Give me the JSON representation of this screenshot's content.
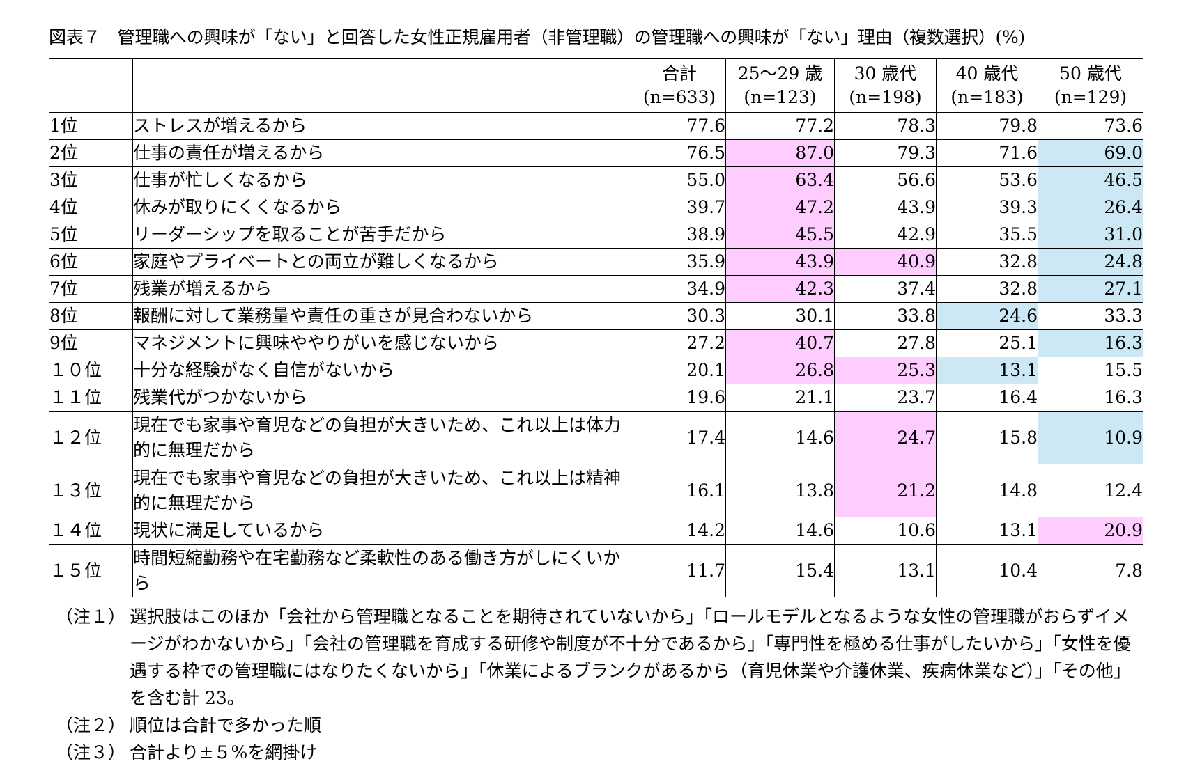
{
  "title": "図表７　管理職への興味が「ない」と回答した女性正規雇用者（非管理職）の管理職への興味が「ない」理由（複数選択）(%)",
  "chart_data": {
    "type": "table",
    "columns": [
      {
        "name": "合計",
        "n": "(n=633)"
      },
      {
        "name": "25～29 歳",
        "n": "(n=123)"
      },
      {
        "name": "30 歳代",
        "n": "(n=198)"
      },
      {
        "name": "40 歳代",
        "n": "(n=183)"
      },
      {
        "name": "50 歳代",
        "n": "(n=129)"
      }
    ],
    "rows": [
      {
        "rank": "1位",
        "reason": "ストレスが増えるから",
        "values": [
          "77.6",
          "77.2",
          "78.3",
          "79.8",
          "73.6"
        ],
        "highlight": [
          "",
          "",
          "",
          "",
          ""
        ]
      },
      {
        "rank": "2位",
        "reason": "仕事の責任が増えるから",
        "values": [
          "76.5",
          "87.0",
          "79.3",
          "71.6",
          "69.0"
        ],
        "highlight": [
          "",
          "hi",
          "",
          "",
          "lo"
        ]
      },
      {
        "rank": "3位",
        "reason": "仕事が忙しくなるから",
        "values": [
          "55.0",
          "63.4",
          "56.6",
          "53.6",
          "46.5"
        ],
        "highlight": [
          "",
          "hi",
          "",
          "",
          "lo"
        ]
      },
      {
        "rank": "4位",
        "reason": "休みが取りにくくなるから",
        "values": [
          "39.7",
          "47.2",
          "43.9",
          "39.3",
          "26.4"
        ],
        "highlight": [
          "",
          "hi",
          "",
          "",
          "lo"
        ]
      },
      {
        "rank": "5位",
        "reason": "リーダーシップを取ることが苦手だから",
        "values": [
          "38.9",
          "45.5",
          "42.9",
          "35.5",
          "31.0"
        ],
        "highlight": [
          "",
          "hi",
          "",
          "",
          "lo"
        ]
      },
      {
        "rank": "6位",
        "reason": "家庭やプライベートとの両立が難しくなるから",
        "values": [
          "35.9",
          "43.9",
          "40.9",
          "32.8",
          "24.8"
        ],
        "highlight": [
          "",
          "hi",
          "hi",
          "",
          "lo"
        ]
      },
      {
        "rank": "7位",
        "reason": "残業が増えるから",
        "values": [
          "34.9",
          "42.3",
          "37.4",
          "32.8",
          "27.1"
        ],
        "highlight": [
          "",
          "hi",
          "",
          "",
          "lo"
        ]
      },
      {
        "rank": "8位",
        "reason": "報酬に対して業務量や責任の重さが見合わないから",
        "values": [
          "30.3",
          "30.1",
          "33.8",
          "24.6",
          "33.3"
        ],
        "highlight": [
          "",
          "",
          "",
          "lo",
          ""
        ]
      },
      {
        "rank": "9位",
        "reason": "マネジメントに興味ややりがいを感じないから",
        "values": [
          "27.2",
          "40.7",
          "27.8",
          "25.1",
          "16.3"
        ],
        "highlight": [
          "",
          "hi",
          "",
          "",
          "lo"
        ]
      },
      {
        "rank": "１０位",
        "reason": "十分な経験がなく自信がないから",
        "values": [
          "20.1",
          "26.8",
          "25.3",
          "13.1",
          "15.5"
        ],
        "highlight": [
          "",
          "hi",
          "hi",
          "lo",
          ""
        ]
      },
      {
        "rank": "１１位",
        "reason": "残業代がつかないから",
        "values": [
          "19.6",
          "21.1",
          "23.7",
          "16.4",
          "16.3"
        ],
        "highlight": [
          "",
          "",
          "",
          "",
          ""
        ]
      },
      {
        "rank": "１２位",
        "reason": "現在でも家事や育児などの負担が大きいため、これ以上は体力的に無理だから",
        "values": [
          "17.4",
          "14.6",
          "24.7",
          "15.8",
          "10.9"
        ],
        "highlight": [
          "",
          "",
          "hi",
          "",
          "lo"
        ]
      },
      {
        "rank": "１３位",
        "reason": "現在でも家事や育児などの負担が大きいため、これ以上は精神的に無理だから",
        "values": [
          "16.1",
          "13.8",
          "21.2",
          "14.8",
          "12.4"
        ],
        "highlight": [
          "",
          "",
          "hi",
          "",
          ""
        ]
      },
      {
        "rank": "１４位",
        "reason": "現状に満足しているから",
        "values": [
          "14.2",
          "14.6",
          "10.6",
          "13.1",
          "20.9"
        ],
        "highlight": [
          "",
          "",
          "",
          "",
          "hi"
        ]
      },
      {
        "rank": "１５位",
        "reason": "時間短縮勤務や在宅勤務など柔軟性のある働き方がしにくいから",
        "values": [
          "11.7",
          "15.4",
          "13.1",
          "10.4",
          "7.8"
        ],
        "highlight": [
          "",
          "",
          "",
          "",
          ""
        ]
      }
    ],
    "highlight_colors": {
      "hi": "#ffccff",
      "lo": "#cce8f4"
    }
  },
  "notes": [
    {
      "label": "（注１）",
      "text": "選択肢はこのほか「会社から管理職となることを期待されていないから」「ロールモデルとなるような女性の管理職がおらずイメージがわかないから」「会社の管理職を育成する研修や制度が不十分であるから」「専門性を極める仕事がしたいから」「女性を優遇する枠での管理職にはなりたくないから」「休業によるブランクがあるから（育児休業や介護休業、疾病休業など）」「その他」を含む計 23。"
    },
    {
      "label": "（注２）",
      "text": "順位は合計で多かった順"
    },
    {
      "label": "（注３）",
      "text": "合計より±５%を網掛け"
    }
  ]
}
